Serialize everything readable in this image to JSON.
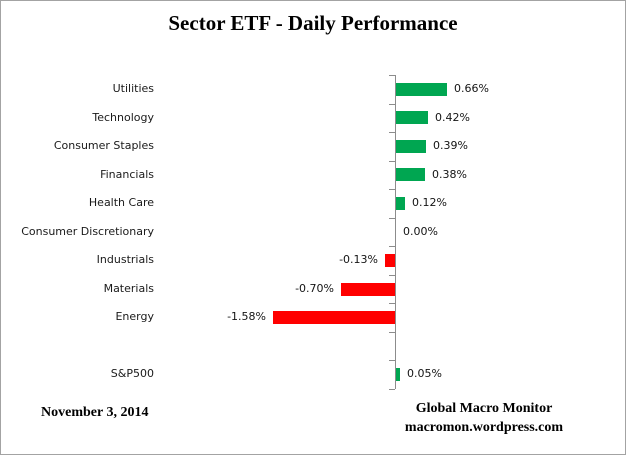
{
  "window": {
    "background": "#ffffff",
    "border_color": "#a3a3a3"
  },
  "chart_data": {
    "type": "bar",
    "orientation": "horizontal",
    "title": "Sector ETF - Daily Performance",
    "categories": [
      "Utilities",
      "Technology",
      "Consumer Staples",
      "Financials",
      "Health Care",
      "Consumer Discretionary",
      "Industrials",
      "Materials",
      "Energy",
      "",
      "S&P500"
    ],
    "values": [
      0.66,
      0.42,
      0.39,
      0.38,
      0.12,
      0.0,
      -0.13,
      -0.7,
      -1.58,
      null,
      0.05
    ],
    "value_labels": [
      "0.66%",
      "0.42%",
      "0.39%",
      "0.38%",
      "0.12%",
      "0.00%",
      "-0.13%",
      "-0.70%",
      "-1.58%",
      "",
      "0.05%"
    ],
    "value_unit": "percent",
    "xlim": [
      -1.75,
      0.9
    ],
    "grid": "off",
    "legend": "none",
    "positive_color": "#00A651",
    "negative_color": "#FF0000",
    "axis_color": "#8C8C8C",
    "label_color": "#141414"
  },
  "footer": {
    "date": "November 3, 2014",
    "source_line1": "Global Macro Monitor",
    "source_line2": "macromon.wordpress.com"
  }
}
